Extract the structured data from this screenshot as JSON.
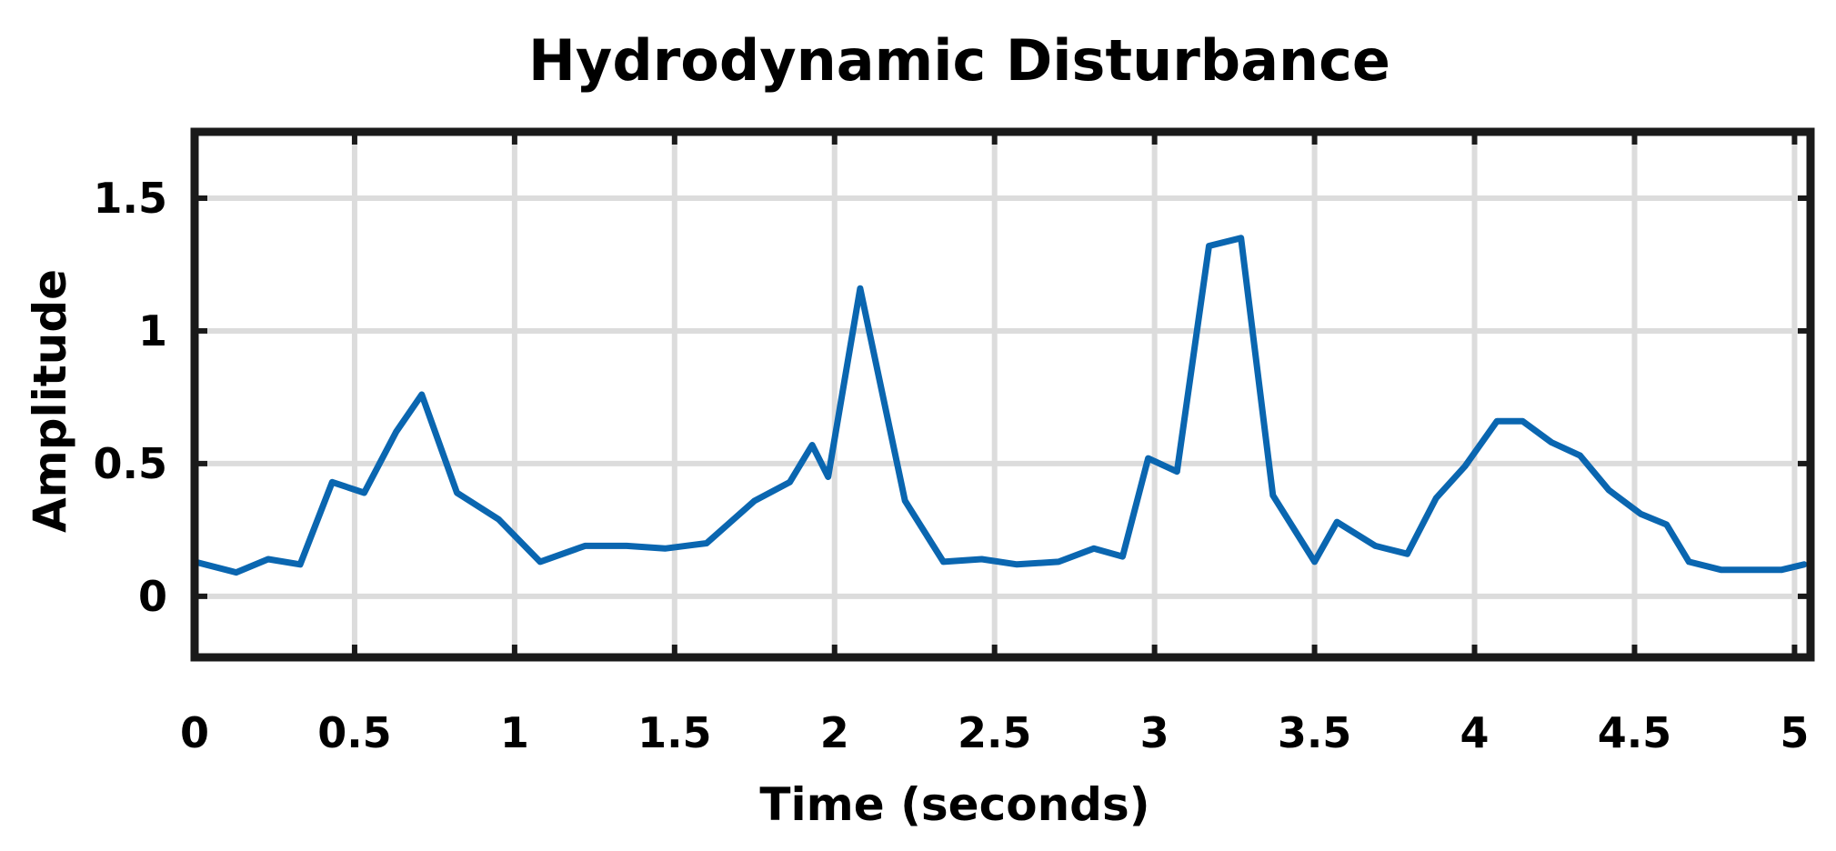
{
  "chart_data": {
    "type": "line",
    "title": "Hydrodynamic Disturbance",
    "xlabel": "Time (seconds)",
    "ylabel": "Amplitude",
    "xlim": [
      0,
      5.05
    ],
    "ylim": [
      -0.23,
      1.75
    ],
    "grid": true,
    "xticks": [
      0,
      0.5,
      1,
      1.5,
      2,
      2.5,
      3,
      3.5,
      4,
      4.5,
      5
    ],
    "xtick_labels": [
      "0",
      "0.5",
      "1",
      "1.5",
      "2",
      "2.5",
      "3",
      "3.5",
      "4",
      "4.5",
      "5"
    ],
    "yticks": [
      0,
      0.5,
      1,
      1.5
    ],
    "ytick_labels": [
      "0",
      "0.5",
      "1",
      "1.5"
    ],
    "series": [
      {
        "color": "#0a66b0",
        "x": [
          0.0,
          0.13,
          0.23,
          0.33,
          0.43,
          0.53,
          0.63,
          0.71,
          0.82,
          0.95,
          1.08,
          1.22,
          1.35,
          1.47,
          1.6,
          1.75,
          1.86,
          1.93,
          1.98,
          2.08,
          2.22,
          2.34,
          2.46,
          2.57,
          2.7,
          2.81,
          2.9,
          2.98,
          3.07,
          3.17,
          3.27,
          3.37,
          3.5,
          3.57,
          3.69,
          3.79,
          3.88,
          3.97,
          4.07,
          4.15,
          4.24,
          4.33,
          4.42,
          4.52,
          4.6,
          4.67,
          4.77,
          4.88,
          4.96,
          5.03
        ],
        "y": [
          0.13,
          0.09,
          0.14,
          0.12,
          0.43,
          0.39,
          0.62,
          0.76,
          0.39,
          0.29,
          0.13,
          0.19,
          0.19,
          0.18,
          0.2,
          0.36,
          0.43,
          0.57,
          0.45,
          1.16,
          0.36,
          0.13,
          0.14,
          0.12,
          0.13,
          0.18,
          0.15,
          0.52,
          0.47,
          1.32,
          1.35,
          0.38,
          0.13,
          0.28,
          0.19,
          0.16,
          0.37,
          0.49,
          0.66,
          0.66,
          0.58,
          0.53,
          0.4,
          0.31,
          0.27,
          0.13,
          0.1,
          0.1,
          0.1,
          0.12
        ]
      }
    ]
  }
}
